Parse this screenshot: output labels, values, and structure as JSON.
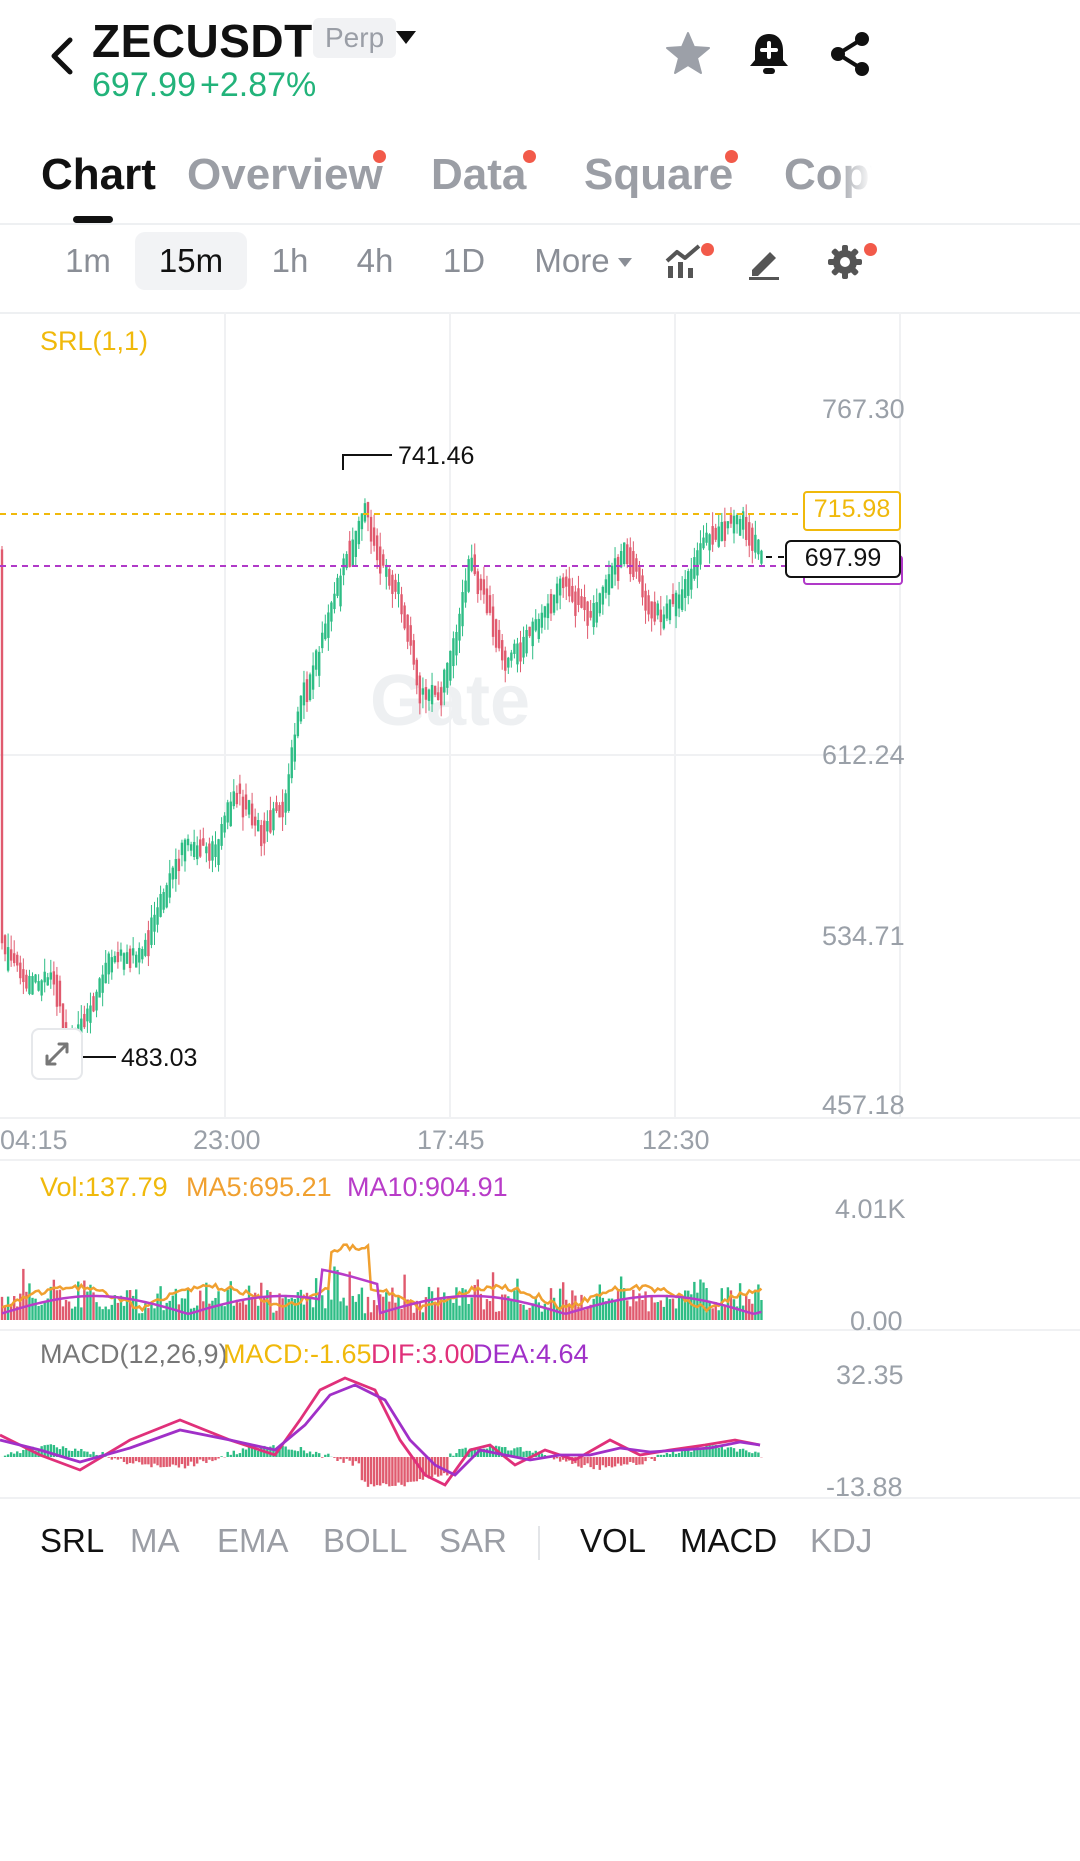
{
  "header": {
    "symbol": "ZECUSDT",
    "contract_type": "Perp",
    "last_price": "697.99",
    "change_pct": "+2.87%",
    "icons": [
      "back-icon",
      "chevron-down-icon",
      "star-icon",
      "bell-plus-icon",
      "share-icon"
    ]
  },
  "tabs": [
    {
      "label": "Chart",
      "active": true,
      "dot": false
    },
    {
      "label": "Overview",
      "active": false,
      "dot": true
    },
    {
      "label": "Data",
      "active": false,
      "dot": true
    },
    {
      "label": "Square",
      "active": false,
      "dot": true
    },
    {
      "label": "Copy",
      "active": false,
      "dot": false
    }
  ],
  "timeframes": {
    "items": [
      "1m",
      "15m",
      "1h",
      "4h",
      "1D"
    ],
    "selected": "15m",
    "more_label": "More",
    "icons": [
      "indicator-icon",
      "draw-pencil-icon",
      "gear-icon"
    ]
  },
  "chart": {
    "indicator_label": "SRL(1,1)",
    "y_ticks": [
      "767.30",
      "612.24",
      "534.71",
      "457.18"
    ],
    "x_ticks": [
      "04:15",
      "23:00",
      "17:45",
      "12:30"
    ],
    "high_label": "741.46",
    "low_label": "483.03",
    "srl_price": "715.98",
    "last_price_tag": "697.99",
    "watermark": "Gate",
    "colors": {
      "up": "#2ebd85",
      "down": "#e05a6e",
      "srl": "#f0b90b",
      "last": "#b039c8"
    }
  },
  "volume": {
    "vol_label": "Vol:137.79",
    "ma5_label": "MA5:695.21",
    "ma10_label": "MA10:904.91",
    "y_top": "4.01K",
    "y_bottom": "0.00"
  },
  "macd": {
    "title": "MACD(12,26,9)",
    "macd_label": "MACD:-1.65",
    "dif_label": "DIF:3.00",
    "dea_label": "DEA:4.64",
    "y_top": "32.35",
    "y_bottom": "-13.88"
  },
  "bottom_tabs": {
    "main": [
      {
        "label": "SRL",
        "active": true
      },
      {
        "label": "MA",
        "active": false
      },
      {
        "label": "EMA",
        "active": false
      },
      {
        "label": "BOLL",
        "active": false
      },
      {
        "label": "SAR",
        "active": false
      }
    ],
    "sub": [
      {
        "label": "VOL",
        "active": true
      },
      {
        "label": "MACD",
        "active": true
      },
      {
        "label": "KDJ",
        "active": false
      }
    ]
  }
}
